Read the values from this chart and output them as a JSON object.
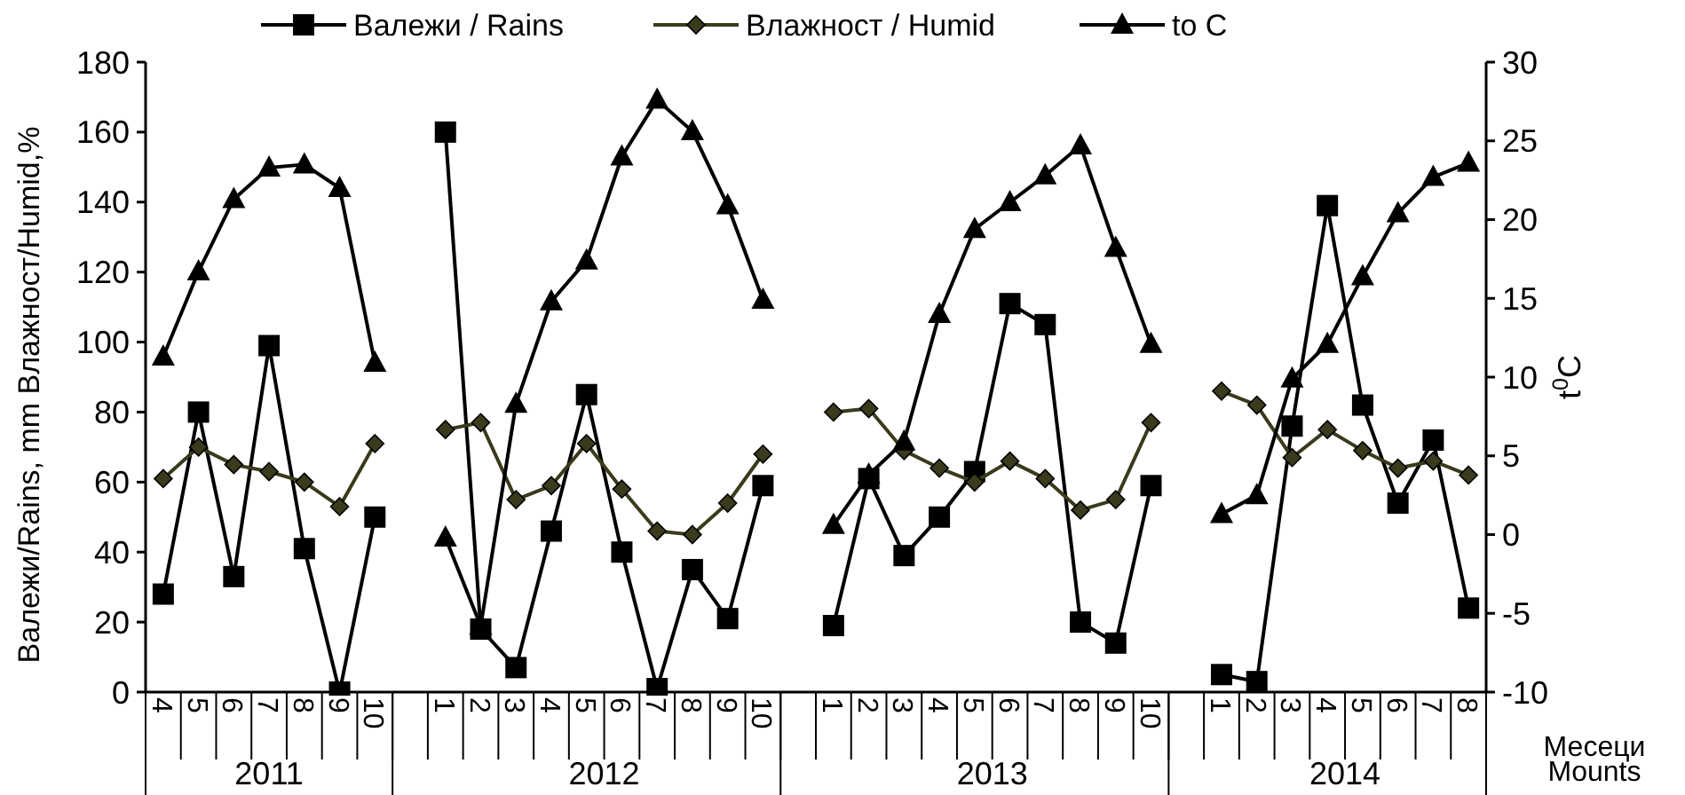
{
  "chart_data": {
    "type": "line",
    "ylabel": "Валежи/Rains, mm  Влажност/Humid,%",
    "y2label": "t$^{0}$C",
    "xlabel": "Месеци\nMounts",
    "categories": [
      "4",
      "5",
      "6",
      "7",
      "8",
      "9",
      "10",
      null,
      "1",
      "2",
      "3",
      "4",
      "5",
      "6",
      "7",
      "8",
      "9",
      "10",
      null,
      "1",
      "2",
      "3",
      "4",
      "5",
      "6",
      "7",
      "8",
      "9",
      "10",
      null,
      "1",
      "2",
      "3",
      "4",
      "5",
      "6",
      "7",
      "8"
    ],
    "annotations": [
      "2011",
      "2012",
      "2013",
      "2014"
    ],
    "ylim": [
      0,
      180
    ],
    "yticks": [
      0,
      20,
      40,
      60,
      80,
      100,
      120,
      140,
      160,
      180
    ],
    "y2lim": [
      -10,
      30
    ],
    "y2ticks": [
      -10,
      -5,
      0,
      5,
      10,
      15,
      20,
      25,
      30
    ],
    "legend": "top",
    "grid": false,
    "series": [
      {
        "name": "Валежи / Rains",
        "color": "#000000",
        "marker": "square",
        "values": [
          28,
          80,
          33,
          99,
          41,
          0,
          50,
          null,
          160,
          18,
          7,
          46,
          85,
          40,
          1,
          35,
          21,
          59,
          null,
          19,
          61,
          39,
          50,
          63,
          111,
          105,
          20,
          14,
          59,
          null,
          5,
          3,
          76,
          139,
          82,
          54,
          72,
          24
        ]
      },
      {
        "name": "Влажност / Humid",
        "color": "#3a3a1c",
        "marker": "diamond",
        "values": [
          61,
          70,
          65,
          63,
          60,
          53,
          71,
          null,
          75,
          77,
          55,
          59,
          71,
          58,
          46,
          45,
          54,
          68,
          null,
          80,
          81,
          69,
          64,
          60,
          66,
          61,
          52,
          55,
          77,
          null,
          86,
          82,
          67,
          75,
          69,
          64,
          66,
          62
        ]
      },
      {
        "name": "to C",
        "color": "#000000",
        "marker": "triangle",
        "axis": "y2",
        "values": [
          11.3,
          16.7,
          21.3,
          23.3,
          23.5,
          22.0,
          10.9,
          null,
          -0.2,
          -5.8,
          8.3,
          14.8,
          17.4,
          24.0,
          27.6,
          25.6,
          20.9,
          14.9,
          null,
          0.6,
          3.8,
          5.9,
          14.0,
          19.4,
          21.1,
          22.8,
          24.7,
          18.2,
          12.1,
          null,
          1.3,
          2.5,
          9.9,
          12.1,
          16.4,
          20.4,
          22.7,
          23.6
        ]
      }
    ]
  }
}
